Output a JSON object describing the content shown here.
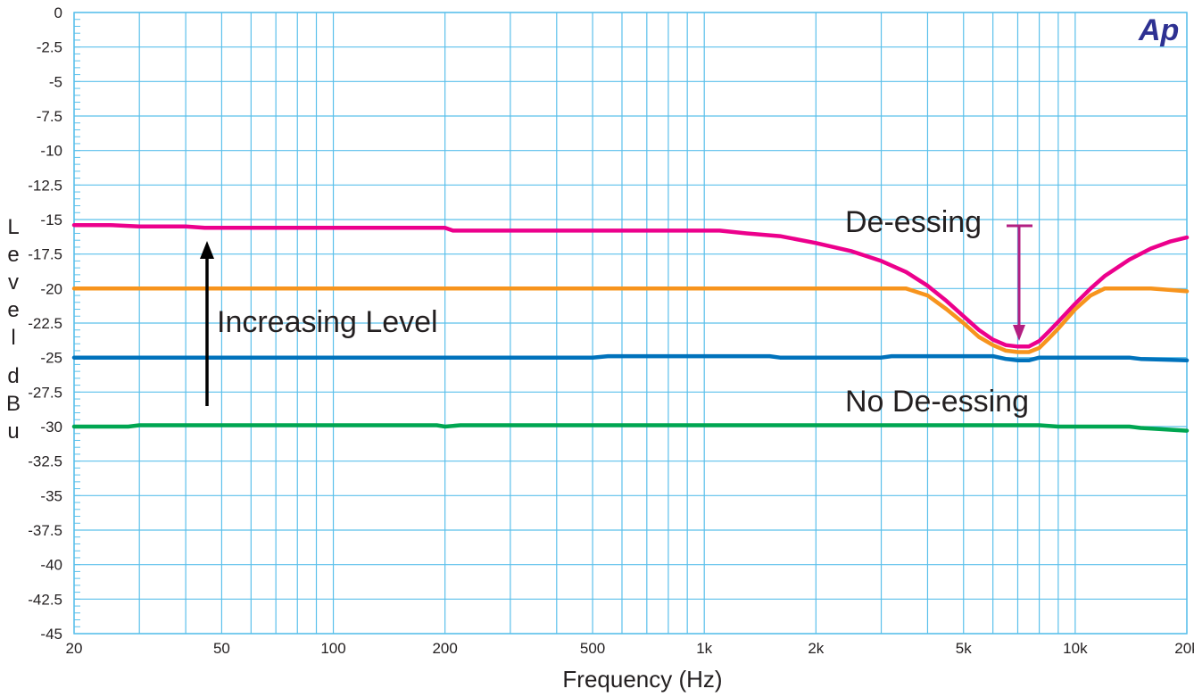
{
  "chart_data": {
    "type": "line",
    "xlabel": "Frequency (Hz)",
    "ylabel": "Level dBu",
    "x_scale": "log",
    "xlim": [
      20,
      20000
    ],
    "ylim": [
      -45,
      0
    ],
    "grid": true,
    "x_ticks": [
      {
        "value": 20,
        "label": "20"
      },
      {
        "value": 50,
        "label": "50"
      },
      {
        "value": 100,
        "label": "100"
      },
      {
        "value": 200,
        "label": "200"
      },
      {
        "value": 500,
        "label": "500"
      },
      {
        "value": 1000,
        "label": "1k"
      },
      {
        "value": 2000,
        "label": "2k"
      },
      {
        "value": 5000,
        "label": "5k"
      },
      {
        "value": 10000,
        "label": "10k"
      },
      {
        "value": 20000,
        "label": "20k"
      }
    ],
    "y_ticks": [
      {
        "value": 0,
        "label": "0"
      },
      {
        "value": -2.5,
        "label": "-2.5"
      },
      {
        "value": -5,
        "label": "-5"
      },
      {
        "value": -7.5,
        "label": "-7.5"
      },
      {
        "value": -10,
        "label": "-10"
      },
      {
        "value": -12.5,
        "label": "-12.5"
      },
      {
        "value": -15,
        "label": "-15"
      },
      {
        "value": -17.5,
        "label": "-17.5"
      },
      {
        "value": -20,
        "label": "-20"
      },
      {
        "value": -22.5,
        "label": "-22.5"
      },
      {
        "value": -25,
        "label": "-25"
      },
      {
        "value": -27.5,
        "label": "-27.5"
      },
      {
        "value": -30,
        "label": "-30"
      },
      {
        "value": -32.5,
        "label": "-32.5"
      },
      {
        "value": -35,
        "label": "-35"
      },
      {
        "value": -37.5,
        "label": "-37.5"
      },
      {
        "value": -40,
        "label": "-40"
      },
      {
        "value": -42.5,
        "label": "-42.5"
      },
      {
        "value": -45,
        "label": "-45"
      }
    ],
    "series": [
      {
        "color": "#ec008c",
        "points": [
          [
            20,
            -15.4
          ],
          [
            25,
            -15.4
          ],
          [
            30,
            -15.5
          ],
          [
            40,
            -15.5
          ],
          [
            45,
            -15.6
          ],
          [
            100,
            -15.6
          ],
          [
            150,
            -15.6
          ],
          [
            200,
            -15.6
          ],
          [
            210,
            -15.8
          ],
          [
            500,
            -15.8
          ],
          [
            1000,
            -15.8
          ],
          [
            1100,
            -15.8
          ],
          [
            1300,
            -16.0
          ],
          [
            1600,
            -16.2
          ],
          [
            2000,
            -16.7
          ],
          [
            2500,
            -17.3
          ],
          [
            3000,
            -18.0
          ],
          [
            3500,
            -18.8
          ],
          [
            4000,
            -19.8
          ],
          [
            4500,
            -20.9
          ],
          [
            5000,
            -22.0
          ],
          [
            5500,
            -23.0
          ],
          [
            6000,
            -23.7
          ],
          [
            6500,
            -24.1
          ],
          [
            7000,
            -24.2
          ],
          [
            7500,
            -24.2
          ],
          [
            8000,
            -23.8
          ],
          [
            8500,
            -23.1
          ],
          [
            9000,
            -22.4
          ],
          [
            10000,
            -21.1
          ],
          [
            11000,
            -20.0
          ],
          [
            12000,
            -19.1
          ],
          [
            14000,
            -17.9
          ],
          [
            16000,
            -17.1
          ],
          [
            18000,
            -16.6
          ],
          [
            20000,
            -16.3
          ]
        ]
      },
      {
        "color": "#f7941d",
        "points": [
          [
            20,
            -20
          ],
          [
            100,
            -20
          ],
          [
            500,
            -20
          ],
          [
            1000,
            -20
          ],
          [
            2000,
            -20
          ],
          [
            3000,
            -20
          ],
          [
            3500,
            -20
          ],
          [
            4000,
            -20.5
          ],
          [
            4500,
            -21.5
          ],
          [
            5000,
            -22.5
          ],
          [
            5500,
            -23.5
          ],
          [
            6000,
            -24.1
          ],
          [
            6500,
            -24.5
          ],
          [
            7000,
            -24.6
          ],
          [
            7500,
            -24.6
          ],
          [
            8000,
            -24.3
          ],
          [
            8500,
            -23.6
          ],
          [
            9000,
            -22.9
          ],
          [
            10000,
            -21.5
          ],
          [
            11000,
            -20.5
          ],
          [
            12000,
            -20.0
          ],
          [
            14000,
            -20.0
          ],
          [
            16000,
            -20.0
          ],
          [
            18000,
            -20.1
          ],
          [
            20000,
            -20.2
          ]
        ]
      },
      {
        "color": "#0072bc",
        "points": [
          [
            20,
            -25
          ],
          [
            100,
            -25
          ],
          [
            500,
            -25
          ],
          [
            550,
            -24.9
          ],
          [
            1000,
            -24.9
          ],
          [
            1500,
            -24.9
          ],
          [
            1600,
            -25.0
          ],
          [
            3000,
            -25.0
          ],
          [
            3200,
            -24.9
          ],
          [
            5000,
            -24.9
          ],
          [
            6000,
            -24.9
          ],
          [
            6500,
            -25.1
          ],
          [
            7000,
            -25.2
          ],
          [
            7500,
            -25.2
          ],
          [
            8000,
            -25.0
          ],
          [
            10000,
            -25.0
          ],
          [
            14000,
            -25.0
          ],
          [
            15000,
            -25.1
          ],
          [
            20000,
            -25.2
          ]
        ]
      },
      {
        "color": "#00a651",
        "points": [
          [
            20,
            -30.0
          ],
          [
            25,
            -30.0
          ],
          [
            28,
            -30.0
          ],
          [
            30,
            -29.9
          ],
          [
            100,
            -29.9
          ],
          [
            190,
            -29.9
          ],
          [
            200,
            -30.0
          ],
          [
            220,
            -29.9
          ],
          [
            500,
            -29.9
          ],
          [
            1000,
            -29.9
          ],
          [
            5000,
            -29.9
          ],
          [
            8000,
            -29.9
          ],
          [
            9000,
            -30.0
          ],
          [
            12000,
            -30.0
          ],
          [
            14000,
            -30.0
          ],
          [
            15000,
            -30.1
          ],
          [
            20000,
            -30.3
          ]
        ]
      }
    ],
    "annotations": [
      {
        "text": "Increasing Level"
      },
      {
        "text": "De-essing"
      },
      {
        "text": "No De-essing"
      }
    ]
  },
  "logo": {
    "text": "Ap"
  }
}
